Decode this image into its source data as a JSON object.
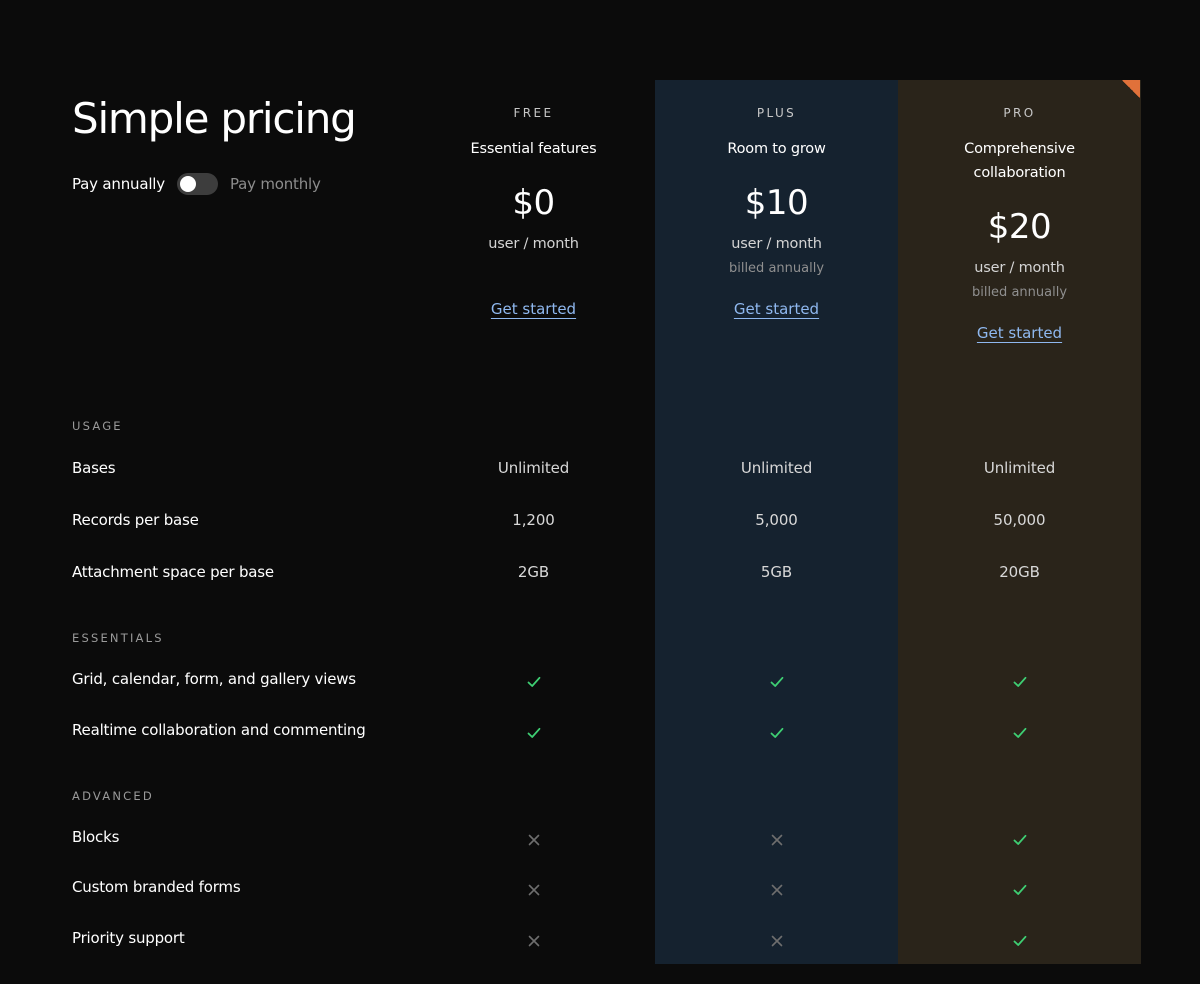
{
  "page_title": "Simple pricing",
  "billing_toggle": {
    "annual_label": "Pay annually",
    "monthly_label": "Pay monthly",
    "selected": "Pay annually"
  },
  "plans": [
    {
      "name": "FREE",
      "tagline": "Essential features",
      "price": "$0",
      "unit": "user / month",
      "billing": "",
      "cta": "Get started"
    },
    {
      "name": "PLUS",
      "tagline": "Room to grow",
      "price": "$10",
      "unit": "user / month",
      "billing": "billed annually",
      "cta": "Get started"
    },
    {
      "name": "PRO",
      "tagline": "Comprehensive collaboration",
      "price": "$20",
      "unit": "user / month",
      "billing": "billed annually",
      "cta": "Get started"
    }
  ],
  "sections": [
    {
      "heading": "USAGE",
      "rows": [
        {
          "label": "Bases",
          "values": [
            "Unlimited",
            "Unlimited",
            "Unlimited"
          ]
        },
        {
          "label": "Records per base",
          "values": [
            "1,200",
            "5,000",
            "50,000"
          ]
        },
        {
          "label": "Attachment space per base",
          "values": [
            "2GB",
            "5GB",
            "20GB"
          ]
        }
      ]
    },
    {
      "heading": "ESSENTIALS",
      "rows": [
        {
          "label": "Grid, calendar, form, and gallery views",
          "values": [
            "check",
            "check",
            "check"
          ]
        },
        {
          "label": "Realtime collaboration and commenting",
          "values": [
            "check",
            "check",
            "check"
          ]
        }
      ]
    },
    {
      "heading": "ADVANCED",
      "rows": [
        {
          "label": "Blocks",
          "values": [
            "cross",
            "cross",
            "check"
          ]
        },
        {
          "label": "Custom branded forms",
          "values": [
            "cross",
            "cross",
            "check"
          ]
        },
        {
          "label": "Priority support",
          "values": [
            "cross",
            "cross",
            "check"
          ]
        }
      ]
    }
  ],
  "icons": {
    "included": "check-icon",
    "excluded": "cross-icon"
  },
  "colors": {
    "background": "#0b0b0b",
    "plus_column": "#15222f",
    "pro_column": "#2a241a",
    "accent_link": "#8fb8ef",
    "check": "#3ecf73",
    "cross": "#6e6e6e",
    "corner_flag": "#e0713a"
  }
}
